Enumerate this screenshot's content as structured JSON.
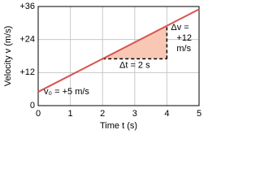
{
  "chart_data": {
    "type": "line",
    "x_label": "Time t (s)",
    "y_label": "Velocity v (m/s)",
    "x": [
      0,
      2,
      4,
      5
    ],
    "series": [
      {
        "color": "#d9534f",
        "values": [
          5,
          17,
          29,
          35
        ]
      }
    ],
    "highlight_color": "#f8c8b4",
    "xlim": [
      0,
      5
    ],
    "xticks": [
      0,
      1,
      2,
      3,
      4,
      5
    ],
    "ylim": [
      0,
      36
    ],
    "yticks": [
      0,
      {
        "value": 12,
        "label": "+12"
      },
      {
        "value": 24,
        "label": "+24"
      },
      {
        "value": 36,
        "label": "+36"
      }
    ],
    "grid": true,
    "annotations": {
      "v0": "v₀ = +5 m/s",
      "dt": "Δt = 2 s",
      "dv1": "Δv =",
      "dv2": "+12",
      "dv3": "m/s"
    }
  }
}
